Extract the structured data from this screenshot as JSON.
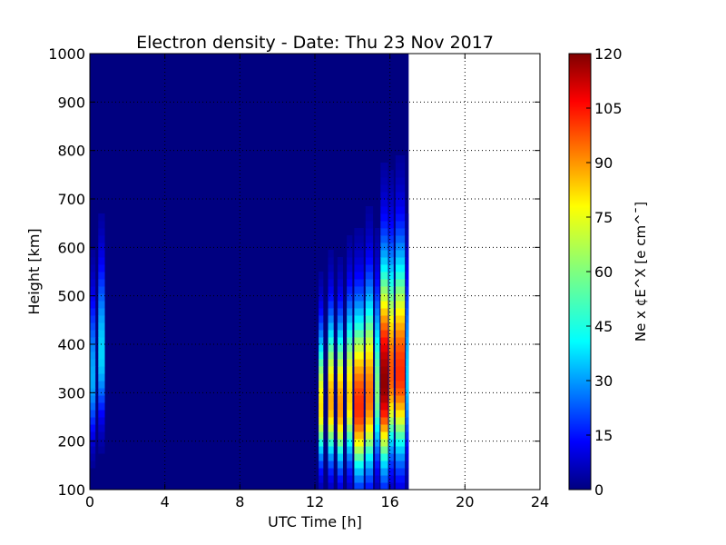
{
  "chart_data": {
    "type": "heatmap",
    "title": "Electron density - Date: Thu 23 Nov 2017",
    "xlabel": "UTC Time [h]",
    "ylabel": "Height [km]",
    "colorbar_label": "Ne x ¢E^X  [e cm^¯]",
    "xlim": [
      0,
      24
    ],
    "ylim": [
      100,
      1000
    ],
    "clim": [
      0,
      120
    ],
    "x_ticks": [
      "0",
      "4",
      "8",
      "12",
      "16",
      "20",
      "24"
    ],
    "y_ticks": [
      "100",
      "200",
      "300",
      "400",
      "500",
      "600",
      "700",
      "800",
      "900",
      "1000"
    ],
    "colorbar_ticks": [
      "0",
      "15",
      "30",
      "45",
      "60",
      "75",
      "90",
      "105",
      "120"
    ],
    "colormap": "jet",
    "grid": true,
    "background_value": 0,
    "data_end_hour": 17.0,
    "columns": [
      {
        "t0": 0.0,
        "t1": 0.3,
        "peak": 35,
        "hmax": 330,
        "width": 120
      },
      {
        "t0": 0.45,
        "t1": 0.8,
        "peak": 40,
        "hmax": 380,
        "width": 130
      },
      {
        "t0": 12.2,
        "t1": 12.45,
        "peak": 78,
        "hmax": 270,
        "width": 110
      },
      {
        "t0": 12.7,
        "t1": 13.0,
        "peak": 85,
        "hmax": 280,
        "width": 120
      },
      {
        "t0": 13.2,
        "t1": 13.5,
        "peak": 88,
        "hmax": 270,
        "width": 120
      },
      {
        "t0": 13.7,
        "t1": 14.0,
        "peak": 80,
        "hmax": 290,
        "width": 130
      },
      {
        "t0": 14.1,
        "t1": 14.6,
        "peak": 100,
        "hmax": 270,
        "width": 140
      },
      {
        "t0": 14.7,
        "t1": 15.1,
        "peak": 92,
        "hmax": 290,
        "width": 150
      },
      {
        "t0": 15.2,
        "t1": 15.45,
        "peak": 60,
        "hmax": 300,
        "width": 140
      },
      {
        "t0": 15.5,
        "t1": 15.9,
        "peak": 118,
        "hmax": 320,
        "width": 170
      },
      {
        "t0": 15.95,
        "t1": 16.2,
        "peak": 95,
        "hmax": 340,
        "width": 160
      },
      {
        "t0": 16.3,
        "t1": 16.8,
        "peak": 100,
        "hmax": 340,
        "width": 170
      },
      {
        "t0": 16.85,
        "t1": 17.0,
        "peak": 40,
        "hmax": 330,
        "width": 150
      }
    ]
  }
}
